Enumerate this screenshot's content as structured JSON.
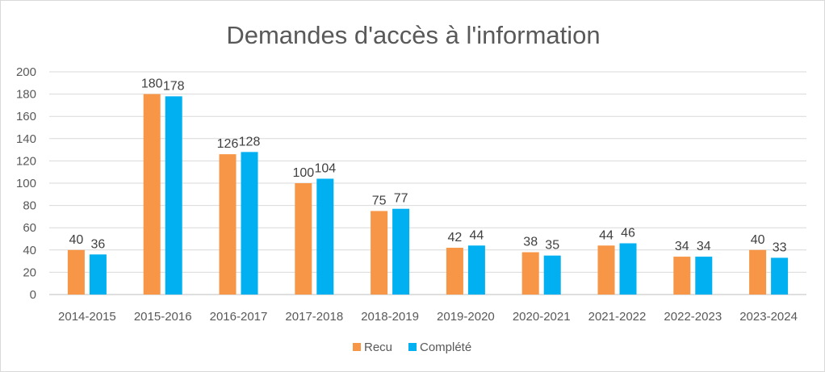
{
  "chart_data": {
    "type": "bar",
    "title": "Demandes d'accès à l'information",
    "xlabel": "",
    "ylabel": "",
    "categories": [
      "2014-2015",
      "2015-2016",
      "2016-2017",
      "2017-2018",
      "2018-2019",
      "2019-2020",
      "2020-2021",
      "2021-2022",
      "2022-2023",
      "2023-2024"
    ],
    "series": [
      {
        "name": "Recu",
        "color": "#F79646",
        "values": [
          40,
          180,
          126,
          100,
          75,
          42,
          38,
          44,
          34,
          40
        ]
      },
      {
        "name": "Complété",
        "color": "#00B0F0",
        "values": [
          36,
          178,
          128,
          104,
          77,
          44,
          35,
          46,
          34,
          33
        ]
      }
    ],
    "ylim": [
      0,
      200
    ],
    "yticks": [
      "0",
      "20",
      "40",
      "60",
      "80",
      "100",
      "120",
      "140",
      "160",
      "180",
      "200"
    ],
    "grid": true,
    "data_labels": true,
    "legend": "bottom"
  }
}
